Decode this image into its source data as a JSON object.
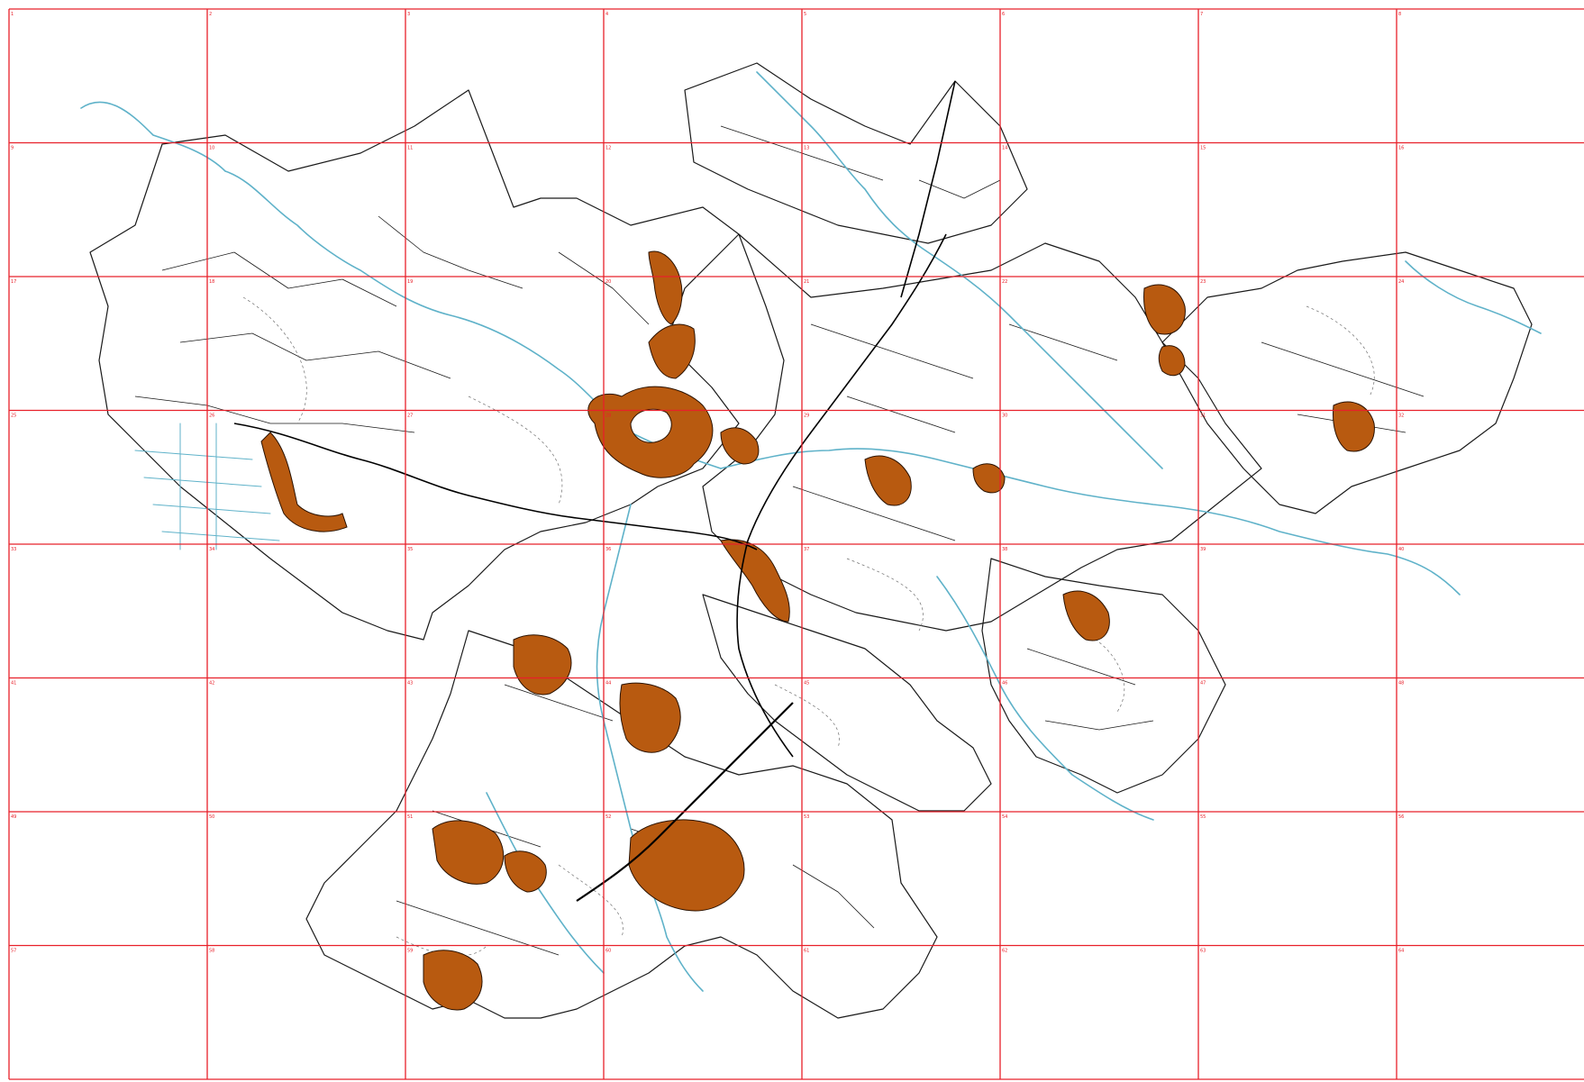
{
  "map": {
    "colors": {
      "background": "#ffffff",
      "grid_line": "#e8202a",
      "parcel_outline": "#1a1a1a",
      "parcel_dashed": "#6f6f6f",
      "river": "#5fb2c9",
      "highlight_fill": "#b85a10",
      "highlight_stroke": "#2a1200",
      "road": "#000000"
    },
    "grid": {
      "columns": 8,
      "rows": 8,
      "cell_labels": [
        "1",
        "2",
        "3",
        "4",
        "5",
        "6",
        "7",
        "8",
        "9",
        "10",
        "11",
        "12",
        "13",
        "14",
        "15",
        "16",
        "17",
        "18",
        "19",
        "20",
        "21",
        "22",
        "23",
        "24",
        "25",
        "26",
        "27",
        "28",
        "29",
        "30",
        "31",
        "32",
        "33",
        "34",
        "35",
        "36",
        "37",
        "38",
        "39",
        "40",
        "41",
        "42",
        "43",
        "44",
        "45",
        "46",
        "47",
        "48",
        "49",
        "50",
        "51",
        "52",
        "53",
        "54",
        "55",
        "56",
        "57",
        "58",
        "59",
        "60",
        "61",
        "62",
        "63",
        "64"
      ]
    },
    "legend_icons": [
      "parcel-outline-icon",
      "river-icon",
      "highlight-zone-icon",
      "grid-icon"
    ]
  }
}
